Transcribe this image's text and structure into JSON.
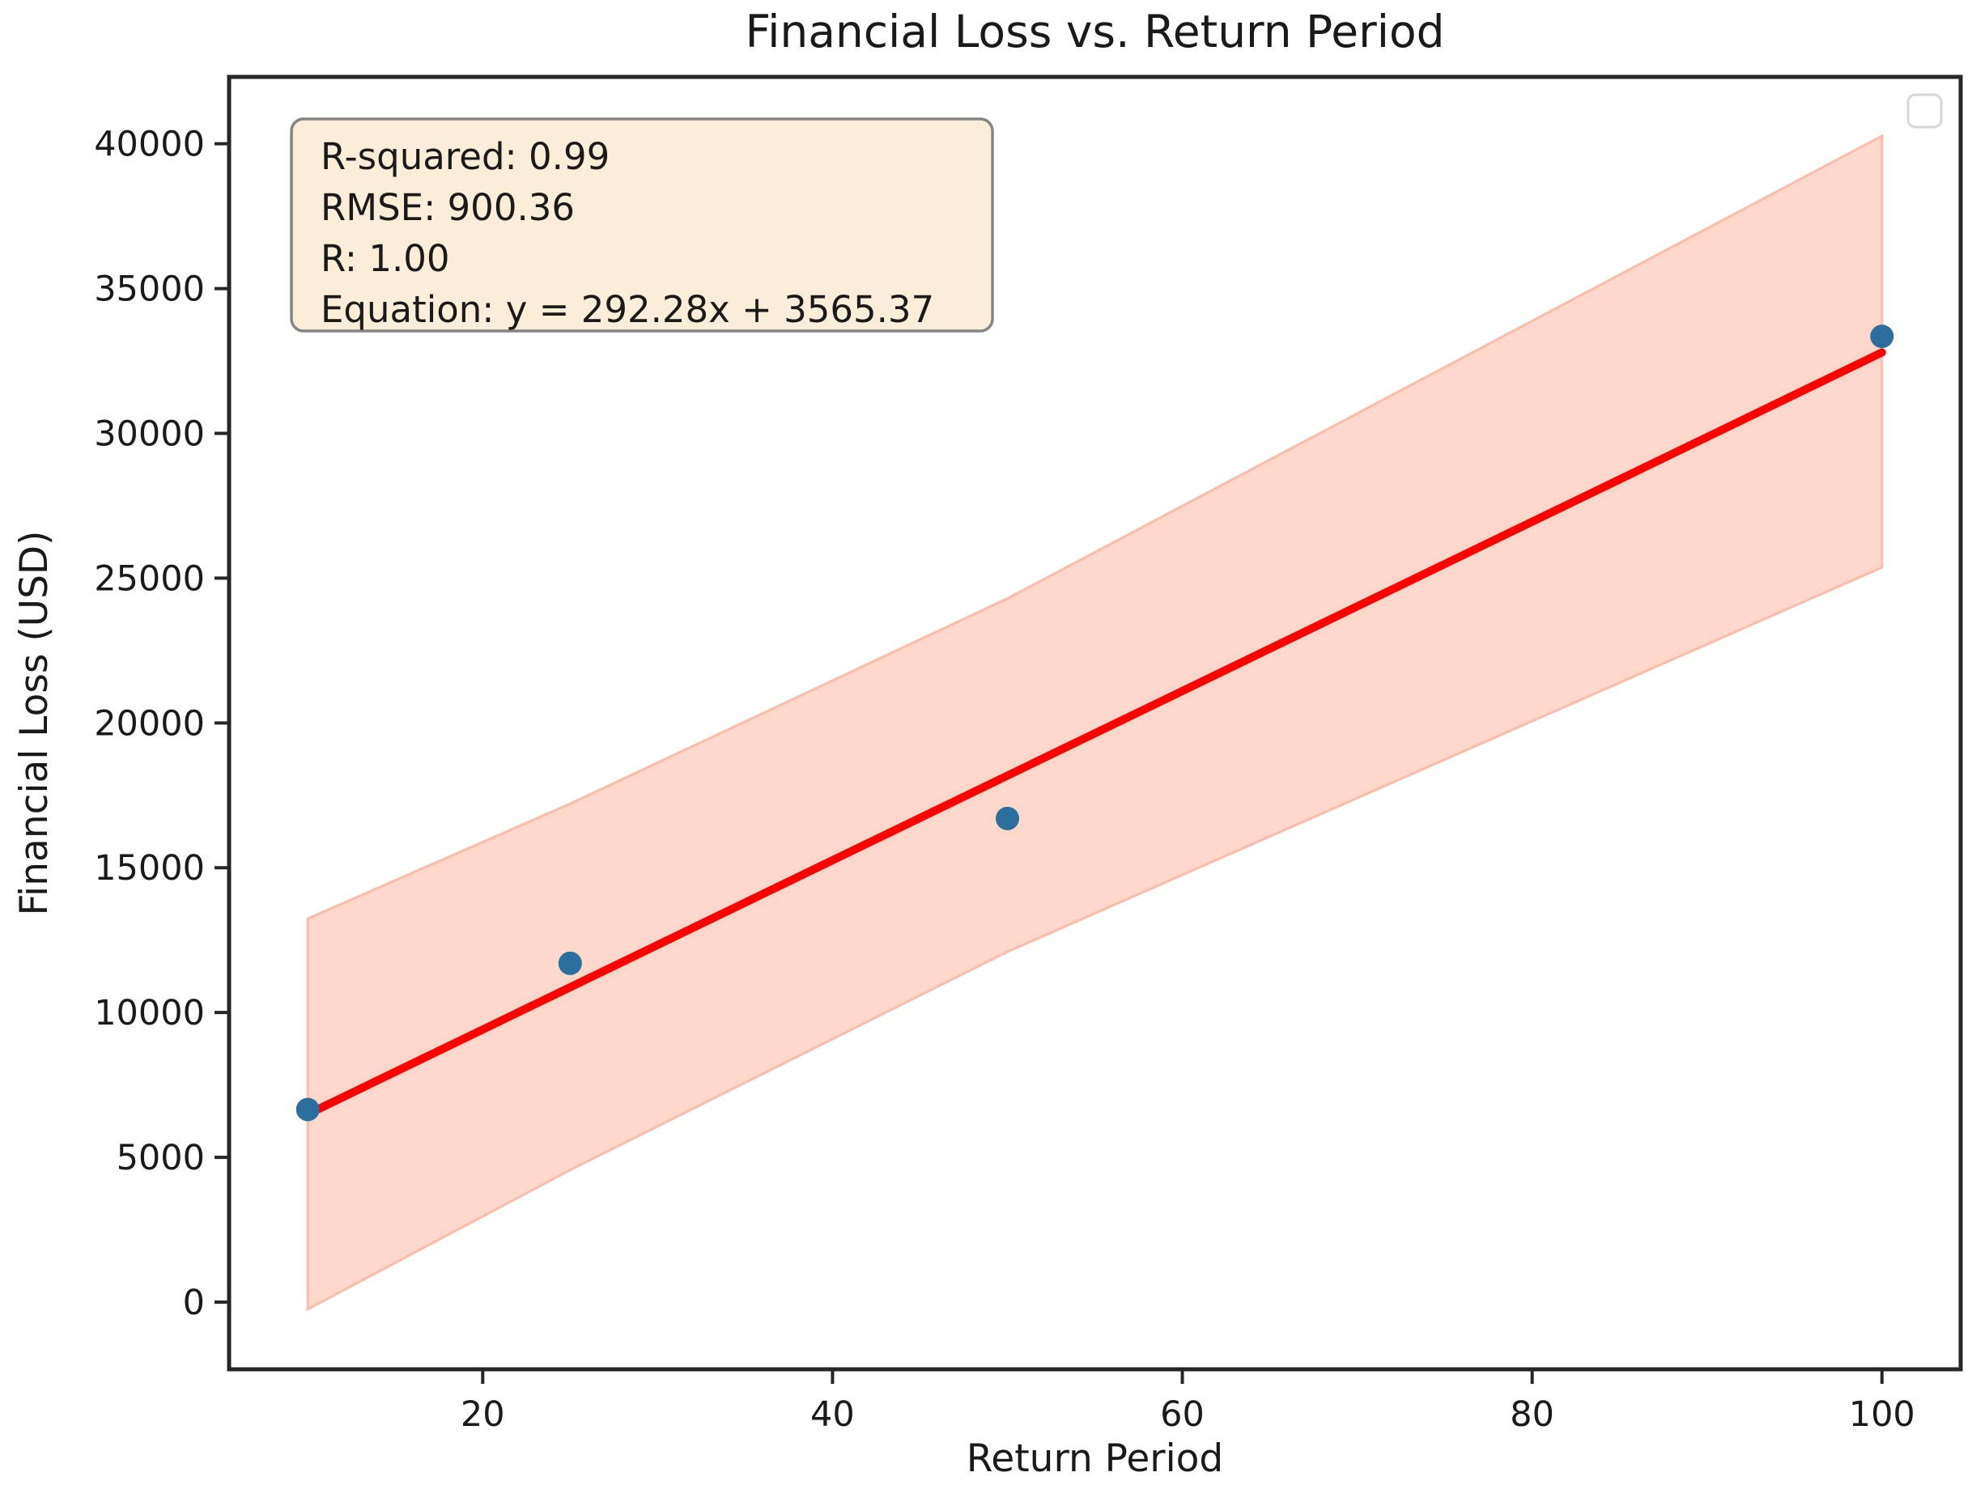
{
  "figure": {
    "background": "#ffffff"
  },
  "annotation": {
    "lines": [
      "R-squared: 0.99",
      "RMSE: 900.36",
      "R: 1.00",
      "Equation: y = 292.28x + 3565.37"
    ]
  },
  "legend": {
    "visible": true,
    "position": "upper right",
    "items": []
  },
  "colors": {
    "regression_line": "#ff0000",
    "scatter_point": "#2b6f9e",
    "band_fill": "#fdd7c9",
    "band_edge": "#fbbca8",
    "annotation_bg": "#faeed8",
    "annotation_border": "#858585",
    "legend_border": "#d6d6d6",
    "spine": "#262626",
    "text": "#1a1a1a"
  },
  "chart_data": {
    "type": "scatter",
    "title": "Financial Loss vs. Return Period",
    "xlabel": "Return Period",
    "ylabel": "Financial Loss (USD)",
    "xlim": [
      5.5,
      104.5
    ],
    "ylim": [
      -2320,
      42310
    ],
    "grid": false,
    "legend_position": "upper right",
    "x_ticks": [
      20,
      40,
      60,
      80,
      100
    ],
    "x_tick_labels": [
      "20",
      "40",
      "60",
      "80",
      "100"
    ],
    "y_ticks": [
      0,
      5000,
      10000,
      15000,
      20000,
      25000,
      30000,
      35000,
      40000
    ],
    "y_tick_labels": [
      "0",
      "5000",
      "10000",
      "15000",
      "20000",
      "25000",
      "30000",
      "35000",
      "40000"
    ],
    "series": [
      {
        "name": "observations",
        "type": "scatter",
        "x": [
          10,
          25,
          50,
          100
        ],
        "y": [
          6650,
          11700,
          16700,
          33350
        ]
      },
      {
        "name": "regression-line",
        "type": "line",
        "slope": 292.28,
        "intercept": 3565.37,
        "x_range": [
          10,
          100
        ]
      },
      {
        "name": "confidence-band",
        "type": "band",
        "x": [
          10,
          25,
          50,
          100
        ],
        "upper": [
          13242,
          17210,
          24298,
          40271
        ],
        "lower": [
          -246,
          4560,
          12096,
          25371
        ]
      }
    ],
    "stats": {
      "r_squared": 0.99,
      "rmse": 900.36,
      "r": 1.0,
      "slope": 292.28,
      "intercept": 3565.37
    }
  }
}
